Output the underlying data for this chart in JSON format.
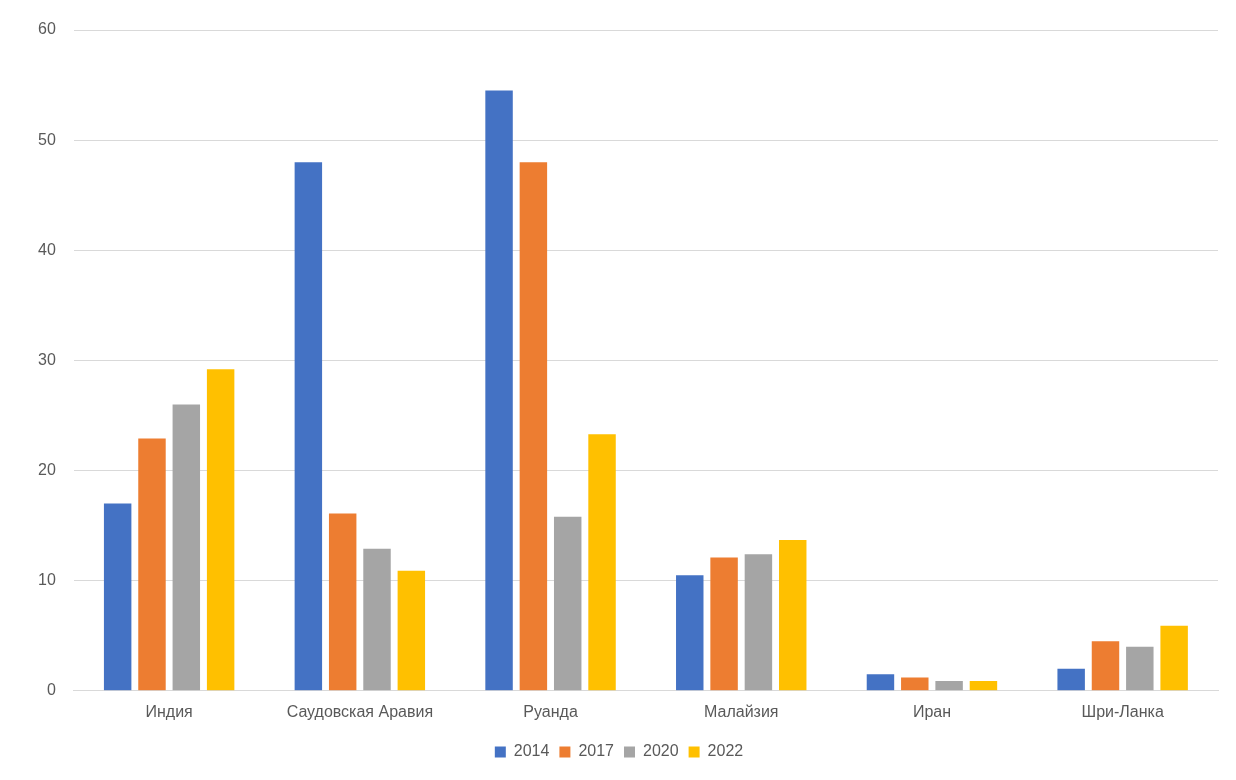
{
  "chart_data": {
    "type": "bar",
    "categories": [
      "Индия",
      "Саудовская Аравия",
      "Руанда",
      "Малайзия",
      "Иран",
      "Шри-Ланка"
    ],
    "series": [
      {
        "name": "2014",
        "color": "#4472c4",
        "values": [
          17.0,
          48.0,
          54.5,
          10.5,
          1.5,
          2.0
        ]
      },
      {
        "name": "2017",
        "color": "#ed7d31",
        "values": [
          22.9,
          16.1,
          48.0,
          12.1,
          1.2,
          4.5
        ]
      },
      {
        "name": "2020",
        "color": "#a5a5a5",
        "values": [
          26.0,
          12.9,
          15.8,
          12.4,
          0.9,
          4.0
        ]
      },
      {
        "name": "2022",
        "color": "#ffc000",
        "values": [
          29.2,
          10.9,
          23.3,
          13.7,
          0.9,
          5.9
        ]
      }
    ],
    "ylim": [
      0,
      60
    ],
    "yticks": [
      0,
      10,
      20,
      30,
      40,
      50,
      60
    ],
    "grid": "y",
    "legend": "bottom"
  }
}
